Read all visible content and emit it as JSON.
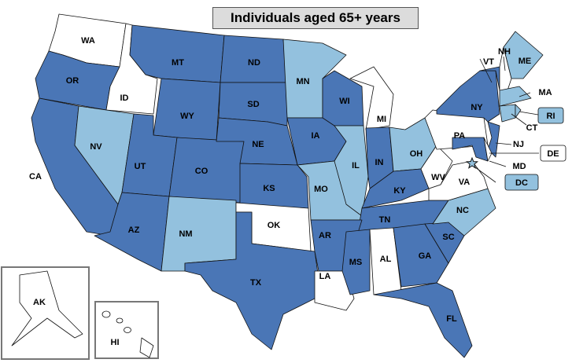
{
  "title": "Individuals aged 65+ years",
  "colors": {
    "dark": "#4a76b6",
    "light": "#93c1de",
    "none": "#ffffff"
  },
  "states": [
    {
      "code": "WA",
      "category": "none"
    },
    {
      "code": "OR",
      "category": "dark"
    },
    {
      "code": "ID",
      "category": "none"
    },
    {
      "code": "CA",
      "category": "dark"
    },
    {
      "code": "NV",
      "category": "light"
    },
    {
      "code": "MT",
      "category": "dark"
    },
    {
      "code": "WY",
      "category": "dark"
    },
    {
      "code": "UT",
      "category": "dark"
    },
    {
      "code": "AZ",
      "category": "dark"
    },
    {
      "code": "CO",
      "category": "dark"
    },
    {
      "code": "NM",
      "category": "light"
    },
    {
      "code": "ND",
      "category": "dark"
    },
    {
      "code": "SD",
      "category": "dark"
    },
    {
      "code": "NE",
      "category": "dark"
    },
    {
      "code": "KS",
      "category": "dark"
    },
    {
      "code": "OK",
      "category": "none"
    },
    {
      "code": "TX",
      "category": "dark"
    },
    {
      "code": "MN",
      "category": "light"
    },
    {
      "code": "IA",
      "category": "dark"
    },
    {
      "code": "WI",
      "category": "dark"
    },
    {
      "code": "MO",
      "category": "light"
    },
    {
      "code": "IL",
      "category": "light"
    },
    {
      "code": "MI",
      "category": "none"
    },
    {
      "code": "IN",
      "category": "dark"
    },
    {
      "code": "OH",
      "category": "light"
    },
    {
      "code": "KY",
      "category": "dark"
    },
    {
      "code": "TN",
      "category": "dark"
    },
    {
      "code": "AR",
      "category": "dark"
    },
    {
      "code": "LA",
      "category": "none"
    },
    {
      "code": "MS",
      "category": "dark"
    },
    {
      "code": "AL",
      "category": "none"
    },
    {
      "code": "GA",
      "category": "dark"
    },
    {
      "code": "FL",
      "category": "dark"
    },
    {
      "code": "SC",
      "category": "dark"
    },
    {
      "code": "NC",
      "category": "light"
    },
    {
      "code": "VA",
      "category": "none"
    },
    {
      "code": "WV",
      "category": "none"
    },
    {
      "code": "PA",
      "category": "none"
    },
    {
      "code": "NY",
      "category": "dark"
    },
    {
      "code": "VT",
      "category": "dark"
    },
    {
      "code": "NH",
      "category": "none"
    },
    {
      "code": "ME",
      "category": "light"
    },
    {
      "code": "MA",
      "category": "light"
    },
    {
      "code": "CT",
      "category": "light"
    },
    {
      "code": "RI",
      "category": "light"
    },
    {
      "code": "NJ",
      "category": "dark"
    },
    {
      "code": "MD",
      "category": "dark"
    },
    {
      "code": "DE",
      "category": "none"
    },
    {
      "code": "DC",
      "category": "light"
    },
    {
      "code": "AK",
      "category": "none"
    },
    {
      "code": "HI",
      "category": "none"
    }
  ]
}
